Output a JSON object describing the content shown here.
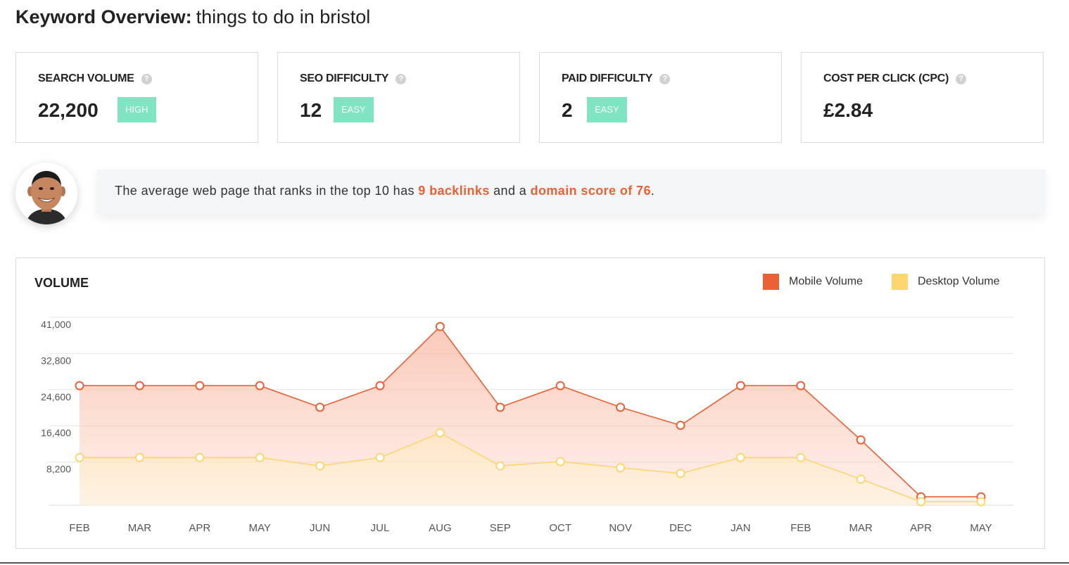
{
  "header": {
    "title_bold": "Keyword Overview:",
    "keyword": "things to do in bristol"
  },
  "metrics": [
    {
      "label": "SEARCH VOLUME",
      "value": "22,200",
      "badge": "HIGH"
    },
    {
      "label": "SEO DIFFICULTY",
      "value": "12",
      "badge": "EASY"
    },
    {
      "label": "PAID DIFFICULTY",
      "value": "2",
      "badge": "EASY"
    },
    {
      "label": "COST PER CLICK (CPC)",
      "value": "£2.84"
    }
  ],
  "help_glyph": "?",
  "tip": {
    "pre": "The average web page that ranks in the top 10 has ",
    "backlinks": "9 backlinks",
    "mid": " and a ",
    "domain_score": "domain score of 76",
    "post": "."
  },
  "colors": {
    "mobile": "#eb6035",
    "desktop": "#fdd66f",
    "badge": "#7fe4c1"
  },
  "chart_data": {
    "type": "area",
    "title": "VOLUME",
    "legend_position": "top-right",
    "grid": true,
    "categories": [
      "FEB",
      "MAR",
      "APR",
      "MAY",
      "JUN",
      "JUL",
      "AUG",
      "SEP",
      "OCT",
      "NOV",
      "DEC",
      "JAN",
      "FEB",
      "MAR",
      "APR",
      "MAY"
    ],
    "y_ticks": [
      "41,000",
      "32,800",
      "24,600",
      "16,400",
      "8,200"
    ],
    "ylim": [
      0,
      42500
    ],
    "series": [
      {
        "name": "Mobile Volume",
        "values": [
          27100,
          27100,
          27100,
          27100,
          22200,
          27100,
          40500,
          22200,
          27100,
          22200,
          18100,
          27100,
          27100,
          14800,
          1900,
          1900
        ]
      },
      {
        "name": "Desktop Volume",
        "values": [
          10800,
          10800,
          10800,
          10800,
          8900,
          10800,
          16400,
          8900,
          9900,
          8500,
          7200,
          10800,
          10800,
          5900,
          800,
          800
        ]
      }
    ]
  }
}
